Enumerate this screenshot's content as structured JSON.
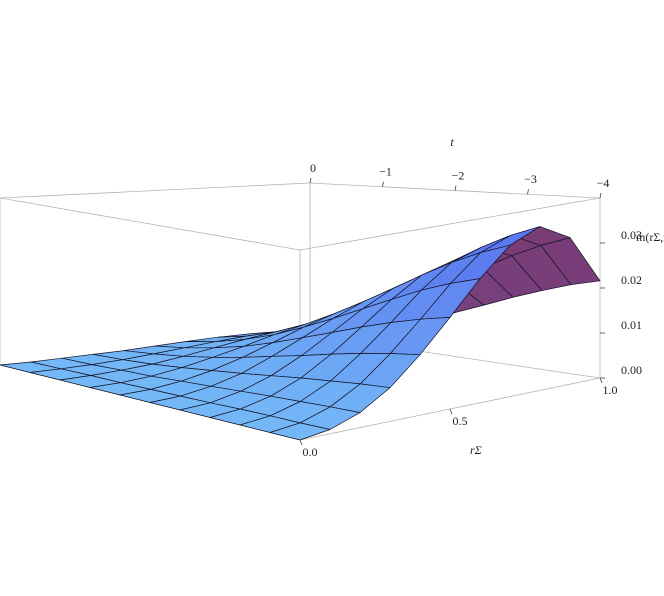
{
  "chart_data": {
    "type": "surface",
    "x_label": "rΣ",
    "y_label": "t",
    "z_label": "m(rΣ,t",
    "x": [
      0,
      0.1,
      0.2,
      0.3,
      0.4,
      0.5,
      0.6,
      0.7,
      0.8,
      0.9,
      1
    ],
    "y": [
      0,
      -0.4,
      -0.8,
      -1.2,
      -1.6,
      -2,
      -2.4,
      -2.8,
      -3.2,
      -3.6,
      -4
    ],
    "z": [
      [
        0,
        0,
        0.0002,
        0.0004,
        0.0006,
        0.001,
        0.0014,
        0.0017,
        0.0018,
        0.0016,
        0.0011
      ],
      [
        0,
        0.0001,
        0.0003,
        0.0007,
        0.0013,
        0.002,
        0.0027,
        0.0033,
        0.0036,
        0.0032,
        0.0022
      ],
      [
        0,
        0.0002,
        0.0006,
        0.0012,
        0.0022,
        0.0034,
        0.0046,
        0.0056,
        0.0061,
        0.0055,
        0.0037
      ],
      [
        0,
        0.0002,
        0.0008,
        0.0019,
        0.0034,
        0.0051,
        0.007,
        0.0086,
        0.0094,
        0.0084,
        0.0056
      ],
      [
        0,
        0.0003,
        0.0012,
        0.0027,
        0.0048,
        0.0073,
        0.01,
        0.0123,
        0.0133,
        0.012,
        0.008
      ],
      [
        0,
        0.0004,
        0.0016,
        0.0035,
        0.0064,
        0.0097,
        0.0132,
        0.0162,
        0.0176,
        0.0159,
        0.0106
      ],
      [
        0,
        0.0005,
        0.002,
        0.0044,
        0.0079,
        0.0121,
        0.0165,
        0.0202,
        0.022,
        0.0198,
        0.0132
      ],
      [
        0,
        0.0007,
        0.0024,
        0.0053,
        0.0095,
        0.0145,
        0.0197,
        0.0242,
        0.0263,
        0.0237,
        0.0158
      ],
      [
        0,
        0.0008,
        0.0027,
        0.006,
        0.0109,
        0.0166,
        0.0227,
        0.0278,
        0.0302,
        0.0272,
        0.0181
      ],
      [
        0,
        0.0008,
        0.003,
        0.0067,
        0.0121,
        0.0184,
        0.0251,
        0.0308,
        0.0335,
        0.0301,
        0.0201
      ],
      [
        0,
        0.0009,
        0.0032,
        0.0072,
        0.013,
        0.0198,
        0.027,
        0.0331,
        0.036,
        0.0324,
        0.0216
      ]
    ],
    "xlim": [
      0,
      1
    ],
    "ylim": [
      0,
      -4
    ],
    "zlim": [
      0,
      0.04
    ],
    "xticks": [
      {
        "value": 0,
        "label": "0.0"
      },
      {
        "value": 0.5,
        "label": "0.5"
      },
      {
        "value": 1,
        "label": "1.0"
      }
    ],
    "yticks": [
      0,
      {
        "value": -1,
        "label": "−1"
      },
      {
        "value": -2,
        "label": "−2"
      },
      {
        "value": -3,
        "label": "−3"
      },
      {
        "value": -4,
        "label": "−4"
      }
    ],
    "zticks": [
      {
        "value": 0,
        "label": "0.00"
      },
      {
        "value": 0.01,
        "label": "0.01"
      },
      {
        "value": 0.02,
        "label": "0.02"
      },
      {
        "value": 0.03,
        "label": "0.03"
      }
    ],
    "colors": {
      "low": "#74b8f7",
      "high": "#5a78ef",
      "back": "#7a3a72",
      "mesh": "#141428",
      "box": "#b4b4b4"
    },
    "box": true
  }
}
